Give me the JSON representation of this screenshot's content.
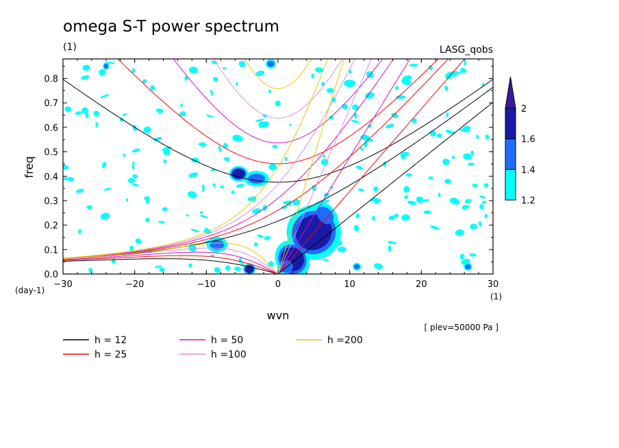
{
  "chart_data": {
    "type": "contour",
    "title": "omega S-T power spectrum",
    "subtitle": "(1)",
    "dataset_label": "LASG_qobs",
    "xlabel": "wvn",
    "ylabel": "freq",
    "x_unit": "(1)",
    "y_unit": "(day-1)",
    "footnote": "[ plev=50000 Pa ]",
    "xlim": [
      -30,
      30
    ],
    "ylim": [
      0,
      0.88
    ],
    "x_ticks": [
      -30,
      -20,
      -10,
      0,
      10,
      20,
      30
    ],
    "y_ticks": [
      0.0,
      0.1,
      0.2,
      0.3,
      0.4,
      0.5,
      0.6,
      0.7,
      0.8
    ],
    "x_tick_labels": [
      "−30",
      "−20",
      "−10",
      "0",
      "10",
      "20",
      "30"
    ],
    "y_tick_labels": [
      "0.0",
      "0.1",
      "0.2",
      "0.3",
      "0.4",
      "0.5",
      "0.6",
      "0.7",
      "0.8"
    ],
    "colorbar": {
      "levels": [
        1.2,
        1.4,
        1.6,
        2
      ],
      "labels": [
        "1.2",
        "1.4",
        "1.6",
        "2"
      ],
      "colors": [
        "#00ffff",
        "#1e6cff",
        "#1a1aa8",
        "#3c1a9a"
      ]
    },
    "equivalent_depths": [
      {
        "label": "h = 12",
        "h": 12,
        "color": "#000000"
      },
      {
        "label": "h = 25",
        "h": 25,
        "color": "#ff0000"
      },
      {
        "label": "h = 50",
        "h": 50,
        "color": "#d10fc8"
      },
      {
        "label": "h =100",
        "h": 100,
        "color": "#e08ce0"
      },
      {
        "label": "h =200",
        "h": 200,
        "color": "#e8c800"
      }
    ],
    "regions": [
      {
        "x": 5.0,
        "y": 0.17,
        "level": 3,
        "rx": 2.6,
        "ry": 0.07,
        "angle": -38
      },
      {
        "x": 2.0,
        "y": 0.06,
        "level": 3,
        "rx": 1.6,
        "ry": 0.05,
        "angle": -30
      },
      {
        "x": 6.6,
        "y": 0.24,
        "level": 2,
        "rx": 1.0,
        "ry": 0.04,
        "angle": -40
      },
      {
        "x": 1.2,
        "y": 0.03,
        "level": 2,
        "rx": 0.9,
        "ry": 0.025,
        "angle": -30
      },
      {
        "x": -5.5,
        "y": 0.41,
        "level": 3,
        "rx": 0.9,
        "ry": 0.02,
        "angle": 0
      },
      {
        "x": -3.0,
        "y": 0.39,
        "level": 2,
        "rx": 1.2,
        "ry": 0.02,
        "angle": 0
      },
      {
        "x": -8.5,
        "y": 0.12,
        "level": 2,
        "rx": 1.0,
        "ry": 0.02,
        "angle": 0
      },
      {
        "x": -4.0,
        "y": 0.02,
        "level": 3,
        "rx": 0.6,
        "ry": 0.015,
        "angle": 0
      },
      {
        "x": -1.0,
        "y": 0.86,
        "level": 2,
        "rx": 0.5,
        "ry": 0.012,
        "angle": 0
      },
      {
        "x": 10.0,
        "y": 0.78,
        "level": 1,
        "rx": 0.8,
        "ry": 0.015,
        "angle": 0
      },
      {
        "x": -24.0,
        "y": 0.85,
        "level": 2,
        "rx": 0.3,
        "ry": 0.01,
        "angle": 0
      },
      {
        "x": 26.5,
        "y": 0.03,
        "level": 2,
        "rx": 0.4,
        "ry": 0.01,
        "angle": 0
      },
      {
        "x": 11.0,
        "y": 0.03,
        "level": 2,
        "rx": 0.4,
        "ry": 0.01,
        "angle": 0
      }
    ],
    "noise_patches": 230
  }
}
